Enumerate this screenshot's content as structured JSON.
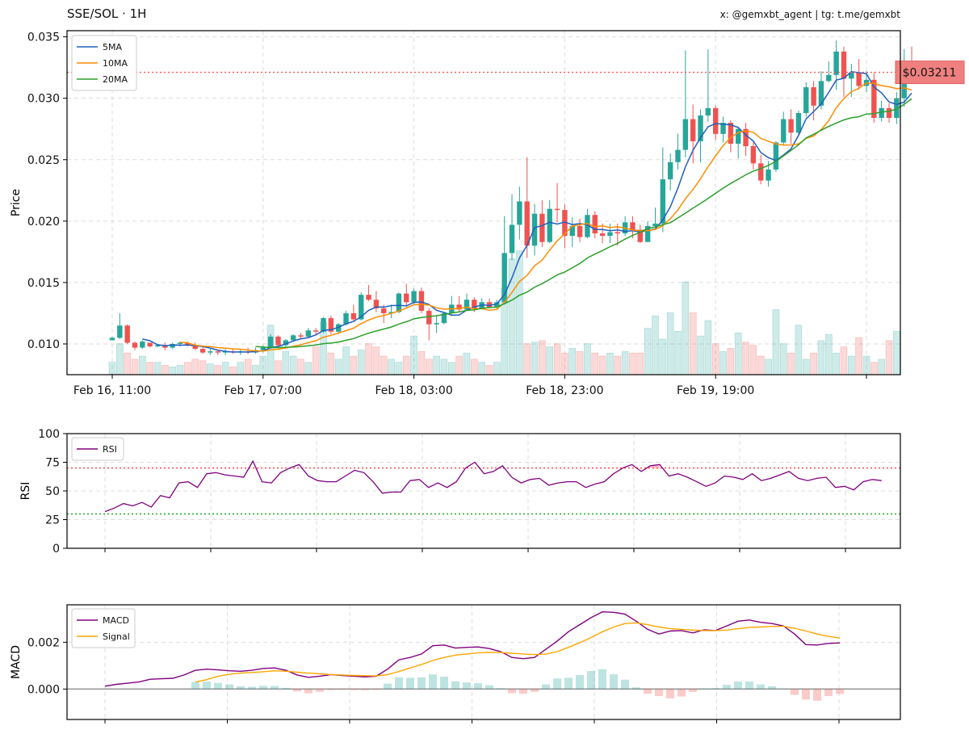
{
  "header": {
    "title": "SSE/SOL · 1H",
    "credits": "x: @gemxbt_agent | tg: t.me/gemxbt"
  },
  "colors": {
    "up": "#26a69a",
    "down": "#ef5350",
    "ma5": "#1f5fbf",
    "ma10": "#ff8c00",
    "ma20": "#2ca02c",
    "rsi": "#800080",
    "macd": "#800080",
    "signal": "#ffa500",
    "overbought": "#ff5555",
    "oversold": "#33aa33",
    "price_line": "#ff5555",
    "price_badge_bg": "#f08080",
    "price_badge_border": "#e06060",
    "grid": "#dddddd"
  },
  "chart_data": [
    {
      "id": "price",
      "type": "candlestick",
      "ylabel": "Price",
      "ylim": [
        0.0075,
        0.0355
      ],
      "yticks": [
        "0.010",
        "0.015",
        "0.020",
        "0.025",
        "0.030",
        "0.035"
      ],
      "xticks": [
        {
          "index": 0,
          "label": "Feb 16, 11:00"
        },
        {
          "index": 20,
          "label": "Feb 17, 07:00"
        },
        {
          "index": 40,
          "label": "Feb 18, 03:00"
        },
        {
          "index": 60,
          "label": "Feb 18, 23:00"
        },
        {
          "index": 80,
          "label": "Feb 19, 19:00"
        },
        {
          "index": 100,
          "label": ""
        }
      ],
      "legend": [
        "5MA",
        "10MA",
        "20MA"
      ],
      "legend_position": "upper-left",
      "current_price": 0.03211,
      "current_price_label": "$0.03211",
      "grid": true,
      "candles": [
        [
          0.0103,
          0.0106,
          0.0103,
          0.0105
        ],
        [
          0.0105,
          0.0125,
          0.0104,
          0.0115
        ],
        [
          0.0115,
          0.0116,
          0.01,
          0.0101
        ],
        [
          0.0101,
          0.0102,
          0.0095,
          0.0097
        ],
        [
          0.0097,
          0.0103,
          0.0096,
          0.0102
        ],
        [
          0.0101,
          0.0101,
          0.0097,
          0.0098
        ],
        [
          0.0098,
          0.01,
          0.0097,
          0.0099
        ],
        [
          0.0099,
          0.0101,
          0.0095,
          0.0097
        ],
        [
          0.0097,
          0.0101,
          0.0096,
          0.01
        ],
        [
          0.01,
          0.0102,
          0.0098,
          0.0101
        ],
        [
          0.0101,
          0.0102,
          0.0098,
          0.0099
        ],
        [
          0.0099,
          0.0101,
          0.0095,
          0.0096
        ],
        [
          0.0096,
          0.0098,
          0.0092,
          0.0093
        ],
        [
          0.0093,
          0.0096,
          0.0091,
          0.0094
        ],
        [
          0.0094,
          0.0095,
          0.0091,
          0.0093
        ],
        [
          0.0093,
          0.0096,
          0.0091,
          0.0094
        ],
        [
          0.0094,
          0.0096,
          0.0092,
          0.0093
        ],
        [
          0.0093,
          0.0096,
          0.0091,
          0.0094
        ],
        [
          0.0094,
          0.0097,
          0.0092,
          0.0093
        ],
        [
          0.0093,
          0.0097,
          0.0092,
          0.0095
        ],
        [
          0.0095,
          0.0099,
          0.0093,
          0.0097
        ],
        [
          0.0097,
          0.0108,
          0.0096,
          0.0106
        ],
        [
          0.0106,
          0.0107,
          0.0098,
          0.0099
        ],
        [
          0.0099,
          0.0104,
          0.0098,
          0.0103
        ],
        [
          0.0103,
          0.0108,
          0.0102,
          0.0107
        ],
        [
          0.0107,
          0.0109,
          0.0104,
          0.0106
        ],
        [
          0.0106,
          0.0113,
          0.0105,
          0.0111
        ],
        [
          0.0111,
          0.0113,
          0.0107,
          0.011
        ],
        [
          0.011,
          0.0122,
          0.0109,
          0.0121
        ],
        [
          0.0121,
          0.0123,
          0.0108,
          0.011
        ],
        [
          0.011,
          0.0117,
          0.0108,
          0.0116
        ],
        [
          0.0116,
          0.0127,
          0.0115,
          0.0125
        ],
        [
          0.0125,
          0.0132,
          0.0118,
          0.012
        ],
        [
          0.012,
          0.0142,
          0.0119,
          0.014
        ],
        [
          0.014,
          0.0148,
          0.0135,
          0.0136
        ],
        [
          0.0136,
          0.0143,
          0.0126,
          0.0129
        ],
        [
          0.0129,
          0.0132,
          0.0117,
          0.0125
        ],
        [
          0.0125,
          0.0132,
          0.0121,
          0.0126
        ],
        [
          0.0126,
          0.0142,
          0.0125,
          0.0141
        ],
        [
          0.0141,
          0.0149,
          0.013,
          0.0134
        ],
        [
          0.0134,
          0.0145,
          0.0132,
          0.0143
        ],
        [
          0.0143,
          0.0146,
          0.0125,
          0.0127
        ],
        [
          0.0127,
          0.0129,
          0.0103,
          0.0116
        ],
        [
          0.0116,
          0.0123,
          0.0109,
          0.0117
        ],
        [
          0.0117,
          0.0126,
          0.0116,
          0.0125
        ],
        [
          0.0125,
          0.0139,
          0.0124,
          0.0132
        ],
        [
          0.0132,
          0.0139,
          0.0126,
          0.0128
        ],
        [
          0.0128,
          0.0141,
          0.0127,
          0.0136
        ],
        [
          0.0136,
          0.0138,
          0.0126,
          0.0129
        ],
        [
          0.0129,
          0.0137,
          0.0128,
          0.0134
        ],
        [
          0.0134,
          0.0137,
          0.0129,
          0.013
        ],
        [
          0.013,
          0.0136,
          0.0128,
          0.0134
        ],
        [
          0.0134,
          0.0204,
          0.0132,
          0.0174
        ],
        [
          0.0174,
          0.0222,
          0.0168,
          0.0197
        ],
        [
          0.0197,
          0.0228,
          0.0185,
          0.0216
        ],
        [
          0.0216,
          0.0252,
          0.017,
          0.018
        ],
        [
          0.018,
          0.0214,
          0.0172,
          0.0206
        ],
        [
          0.0206,
          0.0217,
          0.0179,
          0.0183
        ],
        [
          0.0183,
          0.0217,
          0.0182,
          0.021
        ],
        [
          0.021,
          0.0231,
          0.0199,
          0.0209
        ],
        [
          0.0209,
          0.0214,
          0.0178,
          0.0188
        ],
        [
          0.0188,
          0.0203,
          0.0179,
          0.0196
        ],
        [
          0.0196,
          0.0202,
          0.0183,
          0.0187
        ],
        [
          0.0187,
          0.021,
          0.0186,
          0.0205
        ],
        [
          0.0205,
          0.0208,
          0.0186,
          0.019
        ],
        [
          0.019,
          0.0198,
          0.0182,
          0.0188
        ],
        [
          0.0188,
          0.0198,
          0.0182,
          0.0191
        ],
        [
          0.0191,
          0.0198,
          0.018,
          0.019
        ],
        [
          0.019,
          0.0204,
          0.0188,
          0.0199
        ],
        [
          0.0199,
          0.0204,
          0.0186,
          0.0193
        ],
        [
          0.0193,
          0.0197,
          0.0182,
          0.0183
        ],
        [
          0.0183,
          0.02,
          0.0183,
          0.0196
        ],
        [
          0.0196,
          0.0211,
          0.0195,
          0.0198
        ],
        [
          0.0198,
          0.026,
          0.0191,
          0.0234
        ],
        [
          0.0234,
          0.0255,
          0.0225,
          0.0248
        ],
        [
          0.0248,
          0.0271,
          0.0242,
          0.0258
        ],
        [
          0.0258,
          0.0339,
          0.0252,
          0.0283
        ],
        [
          0.0283,
          0.0295,
          0.0247,
          0.0265
        ],
        [
          0.0265,
          0.0291,
          0.0248,
          0.0286
        ],
        [
          0.0286,
          0.034,
          0.0281,
          0.0292
        ],
        [
          0.0292,
          0.0294,
          0.0266,
          0.0271
        ],
        [
          0.0271,
          0.0285,
          0.0264,
          0.028
        ],
        [
          0.028,
          0.0282,
          0.0256,
          0.0263
        ],
        [
          0.0263,
          0.0277,
          0.0251,
          0.0275
        ],
        [
          0.0275,
          0.028,
          0.0253,
          0.0261
        ],
        [
          0.0261,
          0.0265,
          0.0242,
          0.0247
        ],
        [
          0.0247,
          0.0254,
          0.023,
          0.0233
        ],
        [
          0.0233,
          0.0249,
          0.0228,
          0.0242
        ],
        [
          0.0242,
          0.0265,
          0.024,
          0.0264
        ],
        [
          0.0264,
          0.0289,
          0.0262,
          0.0283
        ],
        [
          0.0283,
          0.0291,
          0.0263,
          0.0272
        ],
        [
          0.0272,
          0.029,
          0.0269,
          0.0288
        ],
        [
          0.0288,
          0.0313,
          0.0285,
          0.0309
        ],
        [
          0.0309,
          0.0314,
          0.0282,
          0.0294
        ],
        [
          0.0294,
          0.0322,
          0.0291,
          0.0314
        ],
        [
          0.0314,
          0.033,
          0.0313,
          0.0319
        ],
        [
          0.0319,
          0.0347,
          0.0307,
          0.0338
        ],
        [
          0.0338,
          0.0342,
          0.0301,
          0.0316
        ],
        [
          0.0316,
          0.0328,
          0.0301,
          0.0321
        ],
        [
          0.0321,
          0.0332,
          0.0307,
          0.031
        ],
        [
          0.031,
          0.0322,
          0.0305,
          0.0315
        ],
        [
          0.0315,
          0.0321,
          0.028,
          0.0284
        ],
        [
          0.0284,
          0.0298,
          0.0281,
          0.0292
        ],
        [
          0.0292,
          0.0296,
          0.028,
          0.0284
        ],
        [
          0.0284,
          0.0305,
          0.0279,
          0.03
        ],
        [
          0.03,
          0.034,
          0.0293,
          0.0324
        ],
        [
          0.0324,
          0.0342,
          0.0318,
          0.0321
        ]
      ],
      "volumes": [
        8,
        20,
        14,
        10,
        12,
        8,
        8,
        6,
        5,
        6,
        8,
        10,
        9,
        7,
        6,
        8,
        5,
        8,
        10,
        6,
        12,
        32,
        9,
        15,
        12,
        10,
        8,
        18,
        34,
        14,
        10,
        18,
        12,
        16,
        20,
        18,
        12,
        10,
        8,
        12,
        25,
        15,
        10,
        12,
        10,
        8,
        12,
        14,
        10,
        8,
        6,
        8,
        56,
        75,
        80,
        20,
        21,
        22,
        18,
        20,
        14,
        17,
        15,
        20,
        14,
        12,
        14,
        12,
        15,
        14,
        14,
        30,
        38,
        23,
        40,
        28,
        60,
        40,
        25,
        35,
        20,
        15,
        17,
        27,
        21,
        19,
        12,
        10,
        42,
        20,
        14,
        32,
        10,
        14,
        22,
        26,
        14,
        18,
        12,
        24,
        12,
        8,
        10,
        22,
        28
      ]
    },
    {
      "id": "rsi",
      "type": "line",
      "ylabel": "RSI",
      "ylim": [
        0,
        100
      ],
      "yticks": [
        "0",
        "25",
        "50",
        "75",
        "100"
      ],
      "legend": [
        "RSI"
      ],
      "legend_position": "upper-left",
      "overbought": 70,
      "oversold": 30,
      "grid": true,
      "series": [
        {
          "name": "RSI",
          "values": [
            32,
            35,
            39,
            37,
            40,
            36,
            46,
            44,
            57,
            58,
            53,
            65,
            66,
            64,
            63,
            62,
            76,
            58,
            57,
            66,
            70,
            73,
            63,
            59,
            58,
            58,
            63,
            68,
            66,
            58,
            48,
            49,
            49,
            59,
            60,
            53,
            57,
            53,
            58,
            70,
            75,
            65,
            67,
            72,
            62,
            57,
            60,
            61,
            55,
            57,
            58,
            58,
            53,
            56,
            58,
            65,
            70,
            73,
            67,
            72,
            73,
            63,
            65,
            62,
            58,
            54,
            57,
            63,
            62,
            60,
            65,
            59,
            61,
            64,
            67,
            61,
            59,
            61,
            62,
            53,
            54,
            51,
            58,
            60,
            59
          ]
        }
      ]
    },
    {
      "id": "macd",
      "type": "line",
      "ylabel": "MACD",
      "ylim": [
        -0.0013,
        0.0036
      ],
      "yticks": [
        "0.000",
        "0.002"
      ],
      "legend": [
        "MACD",
        "Signal"
      ],
      "legend_position": "upper-left",
      "grid": true,
      "series": [
        {
          "name": "MACD",
          "values": [
            0.00012,
            0.0002,
            0.00025,
            0.0003,
            0.00042,
            0.00044,
            0.00046,
            0.0006,
            0.0008,
            0.00085,
            0.00082,
            0.00078,
            0.00076,
            0.0008,
            0.00088,
            0.0009,
            0.0008,
            0.0006,
            0.0005,
            0.00055,
            0.00062,
            0.00058,
            0.00055,
            0.00052,
            0.00055,
            0.00085,
            0.00125,
            0.00135,
            0.0015,
            0.00185,
            0.00188,
            0.00175,
            0.00178,
            0.0018,
            0.00173,
            0.0016,
            0.00135,
            0.0013,
            0.00135,
            0.0017,
            0.00205,
            0.00245,
            0.00275,
            0.00305,
            0.0033,
            0.00328,
            0.0032,
            0.0029,
            0.00255,
            0.00235,
            0.00248,
            0.0025,
            0.0024,
            0.00253,
            0.0025,
            0.0027,
            0.0029,
            0.00295,
            0.00285,
            0.0028,
            0.0027,
            0.00235,
            0.0019,
            0.00188,
            0.00195,
            0.00197
          ]
        },
        {
          "name": "Signal",
          "values": [
            null,
            null,
            null,
            null,
            null,
            null,
            null,
            null,
            0.0003,
            0.0004,
            0.00055,
            0.00063,
            0.00068,
            0.00071,
            0.00074,
            0.00078,
            0.00076,
            0.00072,
            0.00068,
            0.00065,
            0.00062,
            0.0006,
            0.00058,
            0.00057,
            0.00056,
            0.00062,
            0.00075,
            0.0009,
            0.00105,
            0.00122,
            0.00135,
            0.00145,
            0.0015,
            0.00155,
            0.00157,
            0.00156,
            0.00153,
            0.0015,
            0.00147,
            0.0015,
            0.0016,
            0.00178,
            0.00198,
            0.0022,
            0.00245,
            0.00265,
            0.0028,
            0.00283,
            0.00275,
            0.00265,
            0.00258,
            0.00255,
            0.00252,
            0.0025,
            0.0025,
            0.00252,
            0.00258,
            0.00263,
            0.00265,
            0.00268,
            0.00268,
            0.0026,
            0.00248,
            0.00235,
            0.00225,
            0.00218
          ]
        }
      ],
      "histogram": [
        0,
        0,
        0,
        0,
        0,
        0,
        0,
        0,
        0.0003,
        0.00032,
        0.00026,
        0.0002,
        0.00012,
        0.0001,
        0.00014,
        0.00013,
        5e-05,
        -0.0001,
        -0.00018,
        -0.00012,
        -4e-05,
        -3e-05,
        -4e-05,
        -5e-05,
        -3e-05,
        0.00023,
        0.0005,
        0.00048,
        0.0005,
        0.00063,
        0.00053,
        0.00033,
        0.00028,
        0.00025,
        0.00016,
        4e-05,
        -0.00018,
        -0.0002,
        -0.00012,
        0.0002,
        0.00045,
        0.00048,
        0.0006,
        0.00077,
        0.00085,
        0.00063,
        0.0004,
        7e-05,
        -0.0002,
        -0.0003,
        -0.0004,
        -0.00032,
        -0.00012,
        3e-05,
        4e-05,
        0.00018,
        0.00032,
        0.00032,
        0.0002,
        0.00012,
        2e-05,
        -0.00025,
        -0.00045,
        -0.0005,
        -0.0003,
        -0.00021
      ]
    }
  ]
}
